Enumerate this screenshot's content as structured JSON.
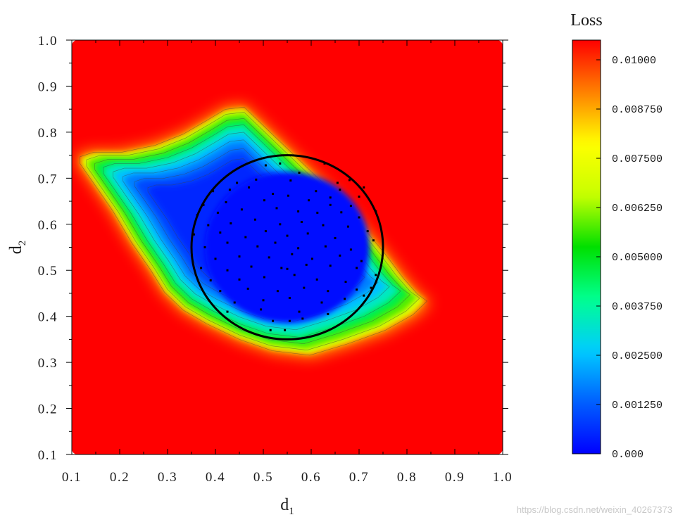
{
  "chart_data": {
    "type": "heatmap",
    "title": "",
    "xlabel": "d",
    "xlabel_sub": "1",
    "ylabel": "d",
    "ylabel_sub": "2",
    "xlim": [
      0.1,
      1.0
    ],
    "ylim": [
      0.1,
      1.0
    ],
    "x_ticks": [
      "0.1",
      "0.2",
      "0.3",
      "0.4",
      "0.5",
      "0.6",
      "0.7",
      "0.8",
      "0.9",
      "1.0"
    ],
    "y_ticks": [
      "0.1",
      "0.2",
      "0.3",
      "0.4",
      "0.5",
      "0.6",
      "0.7",
      "0.8",
      "0.9",
      "1.0"
    ],
    "colorbar": {
      "title": "Loss",
      "range": [
        0.0,
        0.0105
      ],
      "ticks": [
        {
          "value": 0.0,
          "label": "0.000"
        },
        {
          "value": 0.00125,
          "label": "0.001250"
        },
        {
          "value": 0.0025,
          "label": "0.002500"
        },
        {
          "value": 0.00375,
          "label": "0.003750"
        },
        {
          "value": 0.005,
          "label": "0.005000"
        },
        {
          "value": 0.00625,
          "label": "0.006250"
        },
        {
          "value": 0.0075,
          "label": "0.007500"
        },
        {
          "value": 0.00875,
          "label": "0.008750"
        },
        {
          "value": 0.01,
          "label": "0.01000"
        }
      ],
      "colormap": [
        "#0000ff",
        "#0060ff",
        "#00ccff",
        "#00ff90",
        "#00e000",
        "#c8ff00",
        "#ffff00",
        "#ff8000",
        "#ff0000"
      ]
    },
    "background_value": 0.0105,
    "low_region_boundary": [
      [
        0.11,
        0.75
      ],
      [
        0.14,
        0.76
      ],
      [
        0.2,
        0.76
      ],
      [
        0.27,
        0.775
      ],
      [
        0.33,
        0.8
      ],
      [
        0.38,
        0.83
      ],
      [
        0.42,
        0.855
      ],
      [
        0.46,
        0.86
      ],
      [
        0.5,
        0.82
      ],
      [
        0.56,
        0.76
      ],
      [
        0.63,
        0.69
      ],
      [
        0.7,
        0.61
      ],
      [
        0.76,
        0.535
      ],
      [
        0.8,
        0.48
      ],
      [
        0.83,
        0.445
      ],
      [
        0.85,
        0.43
      ],
      [
        0.82,
        0.4
      ],
      [
        0.76,
        0.365
      ],
      [
        0.68,
        0.335
      ],
      [
        0.6,
        0.31
      ],
      [
        0.52,
        0.32
      ],
      [
        0.45,
        0.345
      ],
      [
        0.38,
        0.38
      ],
      [
        0.33,
        0.41
      ],
      [
        0.29,
        0.45
      ],
      [
        0.26,
        0.5
      ],
      [
        0.22,
        0.56
      ],
      [
        0.18,
        0.63
      ],
      [
        0.14,
        0.69
      ],
      [
        0.11,
        0.735
      ]
    ],
    "circle": {
      "center": [
        0.55,
        0.55
      ],
      "radius": 0.2
    },
    "sample_points": [
      [
        0.505,
        0.728
      ],
      [
        0.535,
        0.732
      ],
      [
        0.628,
        0.732
      ],
      [
        0.575,
        0.712
      ],
      [
        0.68,
        0.696
      ],
      [
        0.445,
        0.69
      ],
      [
        0.485,
        0.697
      ],
      [
        0.557,
        0.695
      ],
      [
        0.655,
        0.69
      ],
      [
        0.71,
        0.68
      ],
      [
        0.395,
        0.672
      ],
      [
        0.43,
        0.675
      ],
      [
        0.47,
        0.68
      ],
      [
        0.52,
        0.666
      ],
      [
        0.61,
        0.672
      ],
      [
        0.64,
        0.658
      ],
      [
        0.66,
        0.675
      ],
      [
        0.7,
        0.66
      ],
      [
        0.375,
        0.642
      ],
      [
        0.422,
        0.648
      ],
      [
        0.502,
        0.652
      ],
      [
        0.552,
        0.662
      ],
      [
        0.595,
        0.652
      ],
      [
        0.64,
        0.642
      ],
      [
        0.683,
        0.64
      ],
      [
        0.735,
        0.628
      ],
      [
        0.362,
        0.62
      ],
      [
        0.405,
        0.625
      ],
      [
        0.455,
        0.632
      ],
      [
        0.528,
        0.635
      ],
      [
        0.573,
        0.628
      ],
      [
        0.613,
        0.625
      ],
      [
        0.663,
        0.626
      ],
      [
        0.7,
        0.615
      ],
      [
        0.385,
        0.598
      ],
      [
        0.432,
        0.602
      ],
      [
        0.483,
        0.61
      ],
      [
        0.535,
        0.6
      ],
      [
        0.58,
        0.605
      ],
      [
        0.625,
        0.598
      ],
      [
        0.677,
        0.595
      ],
      [
        0.718,
        0.585
      ],
      [
        0.355,
        0.578
      ],
      [
        0.41,
        0.582
      ],
      [
        0.463,
        0.572
      ],
      [
        0.505,
        0.585
      ],
      [
        0.55,
        0.575
      ],
      [
        0.593,
        0.58
      ],
      [
        0.65,
        0.57
      ],
      [
        0.73,
        0.565
      ],
      [
        0.378,
        0.55
      ],
      [
        0.425,
        0.56
      ],
      [
        0.488,
        0.552
      ],
      [
        0.525,
        0.56
      ],
      [
        0.573,
        0.548
      ],
      [
        0.63,
        0.552
      ],
      [
        0.683,
        0.545
      ],
      [
        0.4,
        0.525
      ],
      [
        0.45,
        0.53
      ],
      [
        0.512,
        0.528
      ],
      [
        0.56,
        0.535
      ],
      [
        0.602,
        0.525
      ],
      [
        0.66,
        0.532
      ],
      [
        0.705,
        0.52
      ],
      [
        0.37,
        0.505
      ],
      [
        0.425,
        0.5
      ],
      [
        0.475,
        0.508
      ],
      [
        0.538,
        0.505
      ],
      [
        0.55,
        0.503
      ],
      [
        0.59,
        0.512
      ],
      [
        0.64,
        0.51
      ],
      [
        0.695,
        0.505
      ],
      [
        0.735,
        0.49
      ],
      [
        0.39,
        0.478
      ],
      [
        0.45,
        0.48
      ],
      [
        0.502,
        0.485
      ],
      [
        0.565,
        0.49
      ],
      [
        0.612,
        0.48
      ],
      [
        0.672,
        0.475
      ],
      [
        0.41,
        0.455
      ],
      [
        0.468,
        0.46
      ],
      [
        0.53,
        0.455
      ],
      [
        0.585,
        0.462
      ],
      [
        0.635,
        0.455
      ],
      [
        0.695,
        0.458
      ],
      [
        0.725,
        0.462
      ],
      [
        0.44,
        0.43
      ],
      [
        0.5,
        0.435
      ],
      [
        0.555,
        0.44
      ],
      [
        0.622,
        0.43
      ],
      [
        0.67,
        0.438
      ],
      [
        0.71,
        0.445
      ],
      [
        0.425,
        0.41
      ],
      [
        0.495,
        0.415
      ],
      [
        0.575,
        0.41
      ],
      [
        0.635,
        0.405
      ],
      [
        0.52,
        0.39
      ],
      [
        0.555,
        0.39
      ],
      [
        0.582,
        0.395
      ],
      [
        0.515,
        0.37
      ],
      [
        0.545,
        0.37
      ]
    ]
  },
  "watermark": "https://blog.csdn.net/weixin_40267373"
}
